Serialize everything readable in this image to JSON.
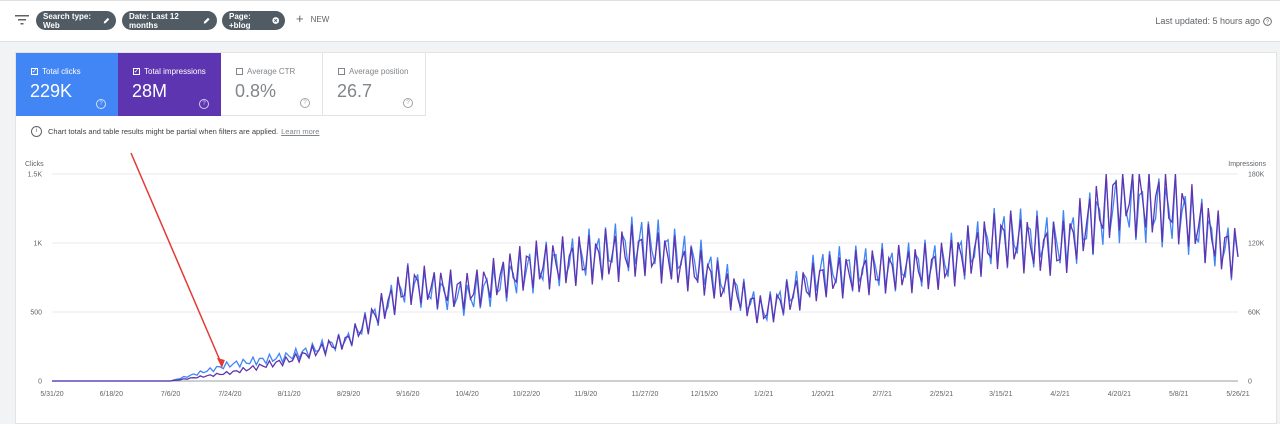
{
  "filters": {
    "chips": [
      {
        "label": "Search type: Web",
        "icon": "pencil-icon"
      },
      {
        "label": "Date: Last 12 months",
        "icon": "pencil-icon"
      },
      {
        "label": "Page: +blog",
        "icon": "close-circle-icon"
      }
    ],
    "new_label": "NEW",
    "last_updated": "Last updated: 5 hours ago"
  },
  "metrics": [
    {
      "label": "Total clicks",
      "value": "229K",
      "checked": true,
      "color": "#4285f4"
    },
    {
      "label": "Total impressions",
      "value": "28M",
      "checked": true,
      "color": "#5e35b1"
    },
    {
      "label": "Average CTR",
      "value": "0.8%",
      "checked": false
    },
    {
      "label": "Average position",
      "value": "26.7",
      "checked": false
    }
  ],
  "notice": {
    "text": "Chart totals and table results might be partial when filters are applied.",
    "link": "Learn more"
  },
  "chart_data": {
    "type": "line",
    "left_axis": {
      "title": "Clicks",
      "ticks": [
        "0",
        "500",
        "1K",
        "1.5K"
      ],
      "range": [
        0,
        1500
      ]
    },
    "right_axis": {
      "title": "Impressions",
      "ticks": [
        "0",
        "60K",
        "120K",
        "180K"
      ],
      "range": [
        0,
        180000
      ]
    },
    "x_ticks": [
      "5/31/20",
      "6/18/20",
      "7/6/20",
      "7/24/20",
      "8/11/20",
      "8/29/20",
      "9/16/20",
      "10/4/20",
      "10/22/20",
      "11/9/20",
      "11/27/20",
      "12/15/20",
      "1/2/21",
      "1/20/21",
      "2/7/21",
      "2/25/21",
      "3/15/21",
      "4/2/21",
      "4/20/21",
      "5/8/21",
      "5/26/21"
    ],
    "grid": true,
    "series": [
      {
        "name": "Total clicks",
        "color": "#4285f4",
        "axis": "left",
        "values_by_tick": [
          0,
          0,
          0,
          120,
          180,
          300,
          700,
          600,
          800,
          900,
          1000,
          830,
          500,
          800,
          820,
          850,
          1050,
          1000,
          1280,
          1220,
          900
        ]
      },
      {
        "name": "Total impressions",
        "color": "#5e35b1",
        "axis": "right",
        "values_by_tick": [
          0,
          0,
          0,
          7200,
          18000,
          36000,
          84000,
          78000,
          99600,
          105600,
          114000,
          93600,
          60000,
          90000,
          96000,
          99600,
          123600,
          114000,
          163200,
          150000,
          108000
        ]
      }
    ],
    "annotation": {
      "type": "arrow",
      "target_x": "7/24/20",
      "color": "#e53935"
    }
  }
}
